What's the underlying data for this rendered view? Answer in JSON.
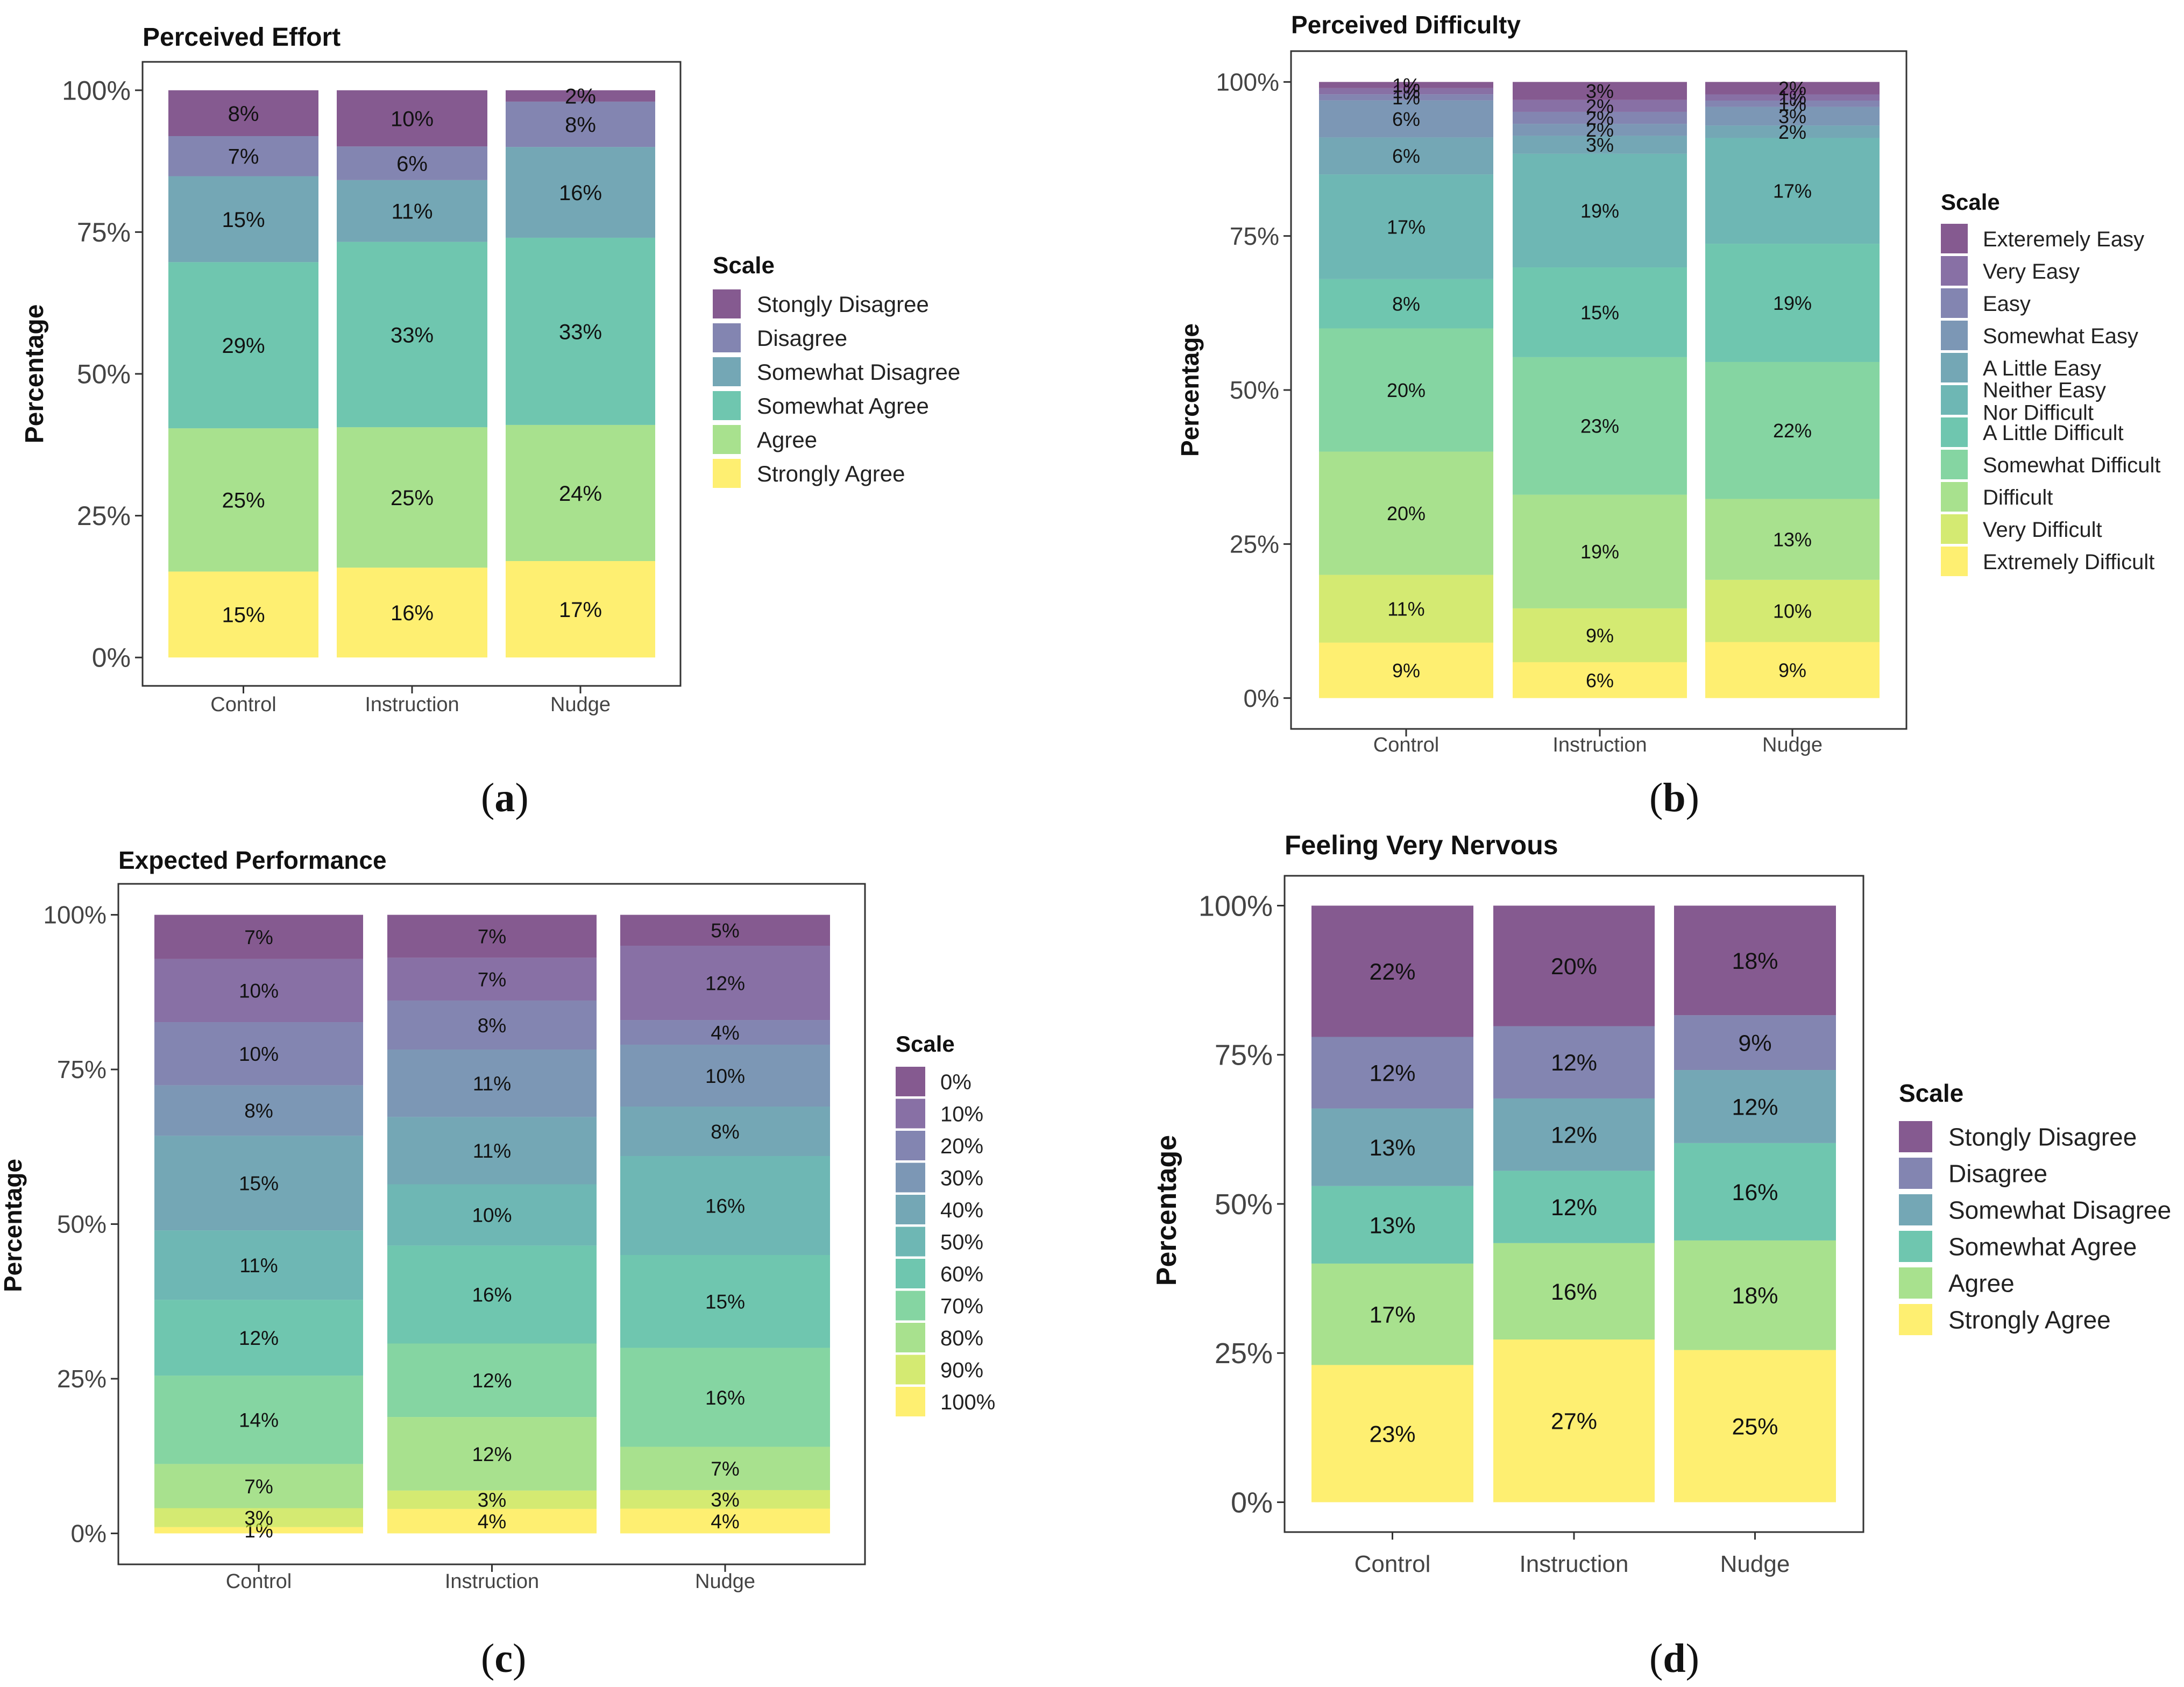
{
  "panel_letters": [
    "a",
    "b",
    "c",
    "d"
  ],
  "chart_data": [
    {
      "id": "a",
      "type": "bar",
      "stacked": true,
      "title": "Perceived Effort",
      "xlabel": "",
      "ylabel": "Percentage",
      "ylim": [
        0,
        100
      ],
      "yticks": [
        "0%",
        "25%",
        "50%",
        "75%",
        "100%"
      ],
      "categories": [
        "Control",
        "Instruction",
        "Nudge"
      ],
      "legend_title": "Scale",
      "legend_position": "right",
      "series": [
        {
          "name": "Strongly Agree",
          "color": "#fde725",
          "values": [
            15,
            16,
            17
          ]
        },
        {
          "name": "Agree",
          "color": "#7ad151",
          "values": [
            25,
            25,
            24
          ]
        },
        {
          "name": "Somewhat Agree",
          "color": "#22a884",
          "values": [
            29,
            33,
            33
          ]
        },
        {
          "name": "Somewhat Disagree",
          "color": "#2a788e",
          "values": [
            15,
            11,
            16
          ]
        },
        {
          "name": "Disagree",
          "color": "#414487",
          "values": [
            7,
            6,
            8
          ]
        },
        {
          "name": "Stongly Disagree",
          "color": "#440154",
          "values": [
            8,
            10,
            2
          ]
        }
      ],
      "legend_order": [
        "Stongly Disagree",
        "Disagree",
        "Somewhat Disagree",
        "Somewhat Agree",
        "Agree",
        "Strongly Agree"
      ]
    },
    {
      "id": "b",
      "type": "bar",
      "stacked": true,
      "title": "Perceived Difficulty",
      "xlabel": "",
      "ylabel": "Percentage",
      "ylim": [
        0,
        100
      ],
      "yticks": [
        "0%",
        "25%",
        "50%",
        "75%",
        "100%"
      ],
      "categories": [
        "Control",
        "Instruction",
        "Nudge"
      ],
      "legend_title": "Scale",
      "legend_position": "right",
      "series": [
        {
          "name": "Extremely Difficult",
          "color": "#fde725",
          "values": [
            9,
            6,
            9
          ]
        },
        {
          "name": "Very Difficult",
          "color": "#bddf26",
          "values": [
            11,
            9,
            10
          ]
        },
        {
          "name": "Difficult",
          "color": "#7ad151",
          "values": [
            20,
            19,
            13
          ]
        },
        {
          "name": "Somewhat Difficult",
          "color": "#44bf70",
          "values": [
            20,
            23,
            22
          ]
        },
        {
          "name": "A Little Difficult",
          "color": "#22a884",
          "values": [
            8,
            15,
            19
          ]
        },
        {
          "name": "Neither Easy Nor Difficult",
          "color": "#21918c",
          "values": [
            17,
            19,
            17
          ]
        },
        {
          "name": "A Little Easy",
          "color": "#2a788e",
          "values": [
            6,
            3,
            2
          ]
        },
        {
          "name": "Somewhat Easy",
          "color": "#355f8d",
          "values": [
            6,
            2,
            3
          ]
        },
        {
          "name": "Easy",
          "color": "#414487",
          "values": [
            1,
            2,
            1
          ]
        },
        {
          "name": "Very Easy",
          "color": "#482475",
          "values": [
            1,
            2,
            1
          ]
        },
        {
          "name": "Exteremely Easy",
          "color": "#440154",
          "values": [
            1,
            3,
            2
          ]
        }
      ],
      "legend_order": [
        "Exteremely Easy",
        "Very Easy",
        "Easy",
        "Somewhat Easy",
        "A Little Easy",
        "Neither Easy Nor Difficult",
        "A Little Difficult",
        "Somewhat Difficult",
        "Difficult",
        "Very Difficult",
        "Extremely Difficult"
      ]
    },
    {
      "id": "c",
      "type": "bar",
      "stacked": true,
      "title": "Expected Performance",
      "xlabel": "",
      "ylabel": "Percentage",
      "ylim": [
        0,
        100
      ],
      "yticks": [
        "0%",
        "25%",
        "50%",
        "75%",
        "100%"
      ],
      "categories": [
        "Control",
        "Instruction",
        "Nudge"
      ],
      "legend_title": "Scale",
      "legend_position": "right",
      "series": [
        {
          "name": "100%",
          "color": "#fde725",
          "values": [
            1,
            4,
            4
          ]
        },
        {
          "name": "90%",
          "color": "#bddf26",
          "values": [
            3,
            3,
            3
          ]
        },
        {
          "name": "80%",
          "color": "#7ad151",
          "values": [
            7,
            12,
            7
          ]
        },
        {
          "name": "70%",
          "color": "#44bf70",
          "values": [
            14,
            12,
            16
          ]
        },
        {
          "name": "60%",
          "color": "#22a884",
          "values": [
            12,
            16,
            15
          ]
        },
        {
          "name": "50%",
          "color": "#21918c",
          "values": [
            11,
            10,
            16
          ]
        },
        {
          "name": "40%",
          "color": "#2a788e",
          "values": [
            15,
            11,
            8
          ]
        },
        {
          "name": "30%",
          "color": "#355f8d",
          "values": [
            8,
            11,
            10
          ]
        },
        {
          "name": "20%",
          "color": "#414487",
          "values": [
            10,
            8,
            4
          ]
        },
        {
          "name": "10%",
          "color": "#482475",
          "values": [
            10,
            7,
            12
          ]
        },
        {
          "name": "0%",
          "color": "#440154",
          "values": [
            7,
            7,
            5
          ]
        }
      ],
      "legend_order": [
        "0%",
        "10%",
        "20%",
        "30%",
        "40%",
        "50%",
        "60%",
        "70%",
        "80%",
        "90%",
        "100%"
      ]
    },
    {
      "id": "d",
      "type": "bar",
      "stacked": true,
      "title": "Feeling Very Nervous",
      "xlabel": "",
      "ylabel": "Percentage",
      "ylim": [
        0,
        100
      ],
      "yticks": [
        "0%",
        "25%",
        "50%",
        "75%",
        "100%"
      ],
      "categories": [
        "Control",
        "Instruction",
        "Nudge"
      ],
      "legend_title": "Scale",
      "legend_position": "right",
      "series": [
        {
          "name": "Strongly Agree",
          "color": "#fde725",
          "values": [
            23,
            27,
            25
          ]
        },
        {
          "name": "Agree",
          "color": "#7ad151",
          "values": [
            17,
            16,
            18
          ]
        },
        {
          "name": "Somewhat Agree",
          "color": "#22a884",
          "values": [
            13,
            12,
            16
          ]
        },
        {
          "name": "Somewhat Disagree",
          "color": "#2a788e",
          "values": [
            13,
            12,
            12
          ]
        },
        {
          "name": "Disagree",
          "color": "#414487",
          "values": [
            12,
            12,
            9
          ]
        },
        {
          "name": "Stongly Disagree",
          "color": "#440154",
          "values": [
            22,
            20,
            18
          ]
        }
      ],
      "legend_order": [
        "Stongly Disagree",
        "Disagree",
        "Somewhat Disagree",
        "Somewhat Agree",
        "Agree",
        "Strongly Agree"
      ]
    }
  ]
}
